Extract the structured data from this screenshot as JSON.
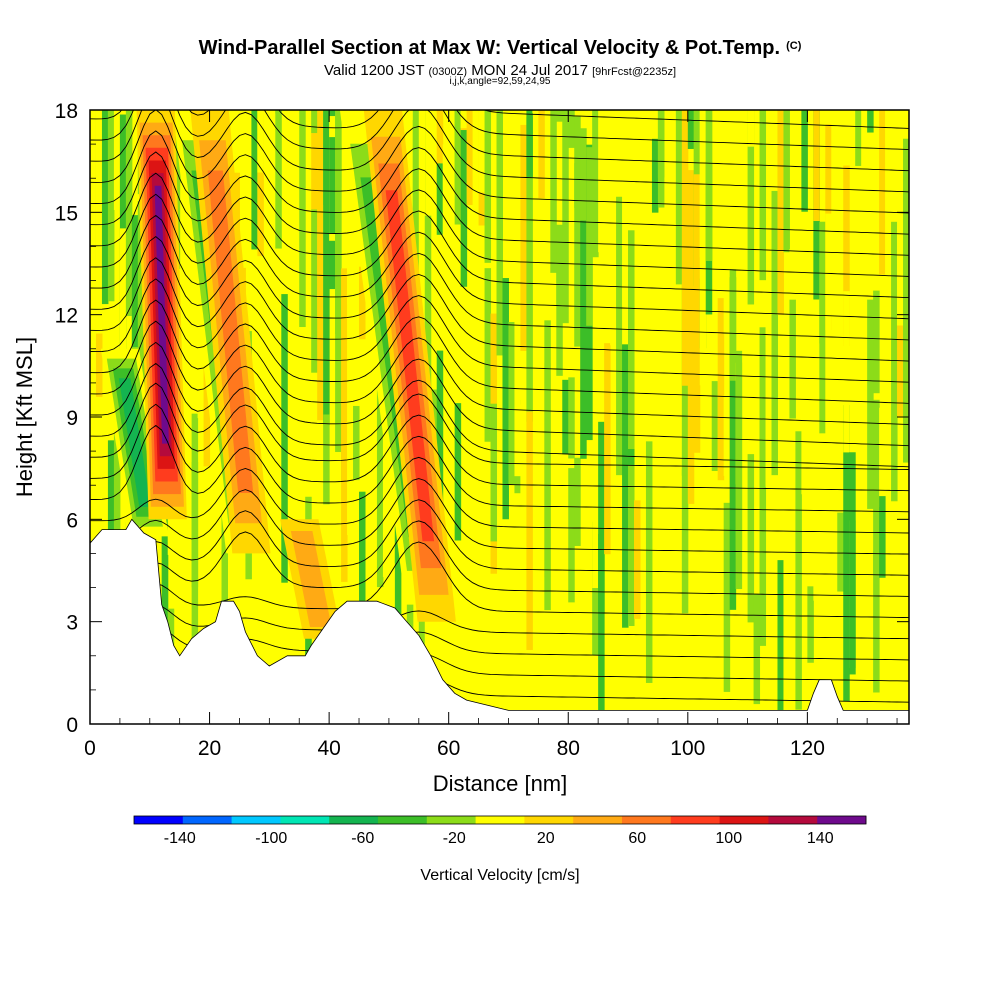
{
  "header": {
    "title": "Wind-Parallel Section at Max W: Vertical Velocity & Pot.Temp.",
    "copyright": "(C)",
    "valid_a": "Valid 1200 JST",
    "valid_z": "(0300Z)",
    "valid_b": "MON 24 Jul 2017",
    "forecast": "[9hrFcst@2235z]",
    "grid_info": "i,j,k,angle=92,59,24,95"
  },
  "chart_data": {
    "type": "heatmap",
    "title": "Wind-Parallel Section at Max W: Vertical Velocity & Pot.Temp.",
    "xlabel": "Distance [nm]",
    "ylabel": "Height [Kft MSL]",
    "xlim": [
      0,
      137
    ],
    "ylim": [
      0,
      18
    ],
    "x_ticks": [
      0,
      20,
      40,
      60,
      80,
      100,
      120
    ],
    "y_ticks": [
      0,
      3,
      6,
      9,
      12,
      15,
      18
    ],
    "colorbar": {
      "label": "Vertical Velocity [cm/s]",
      "min": -160,
      "max": 160,
      "step": 20,
      "tick_values": [
        -140,
        -100,
        -60,
        -20,
        20,
        60,
        100,
        140
      ],
      "colors": [
        "#0000ff",
        "#0066ff",
        "#00c8ff",
        "#00e6b4",
        "#14b450",
        "#3cbe28",
        "#8cdc19",
        "#ffff00",
        "#ffd700",
        "#ffaa14",
        "#ff781e",
        "#ff3c1e",
        "#dc1414",
        "#b40a3c",
        "#6e0a8c"
      ]
    },
    "updraft_bands": [
      {
        "x_bottom": 13,
        "x_top": 11,
        "y_bottom": 6,
        "y_top": 18,
        "peak_w": 140
      },
      {
        "x_bottom": 27,
        "x_top": 20,
        "y_bottom": 5,
        "y_top": 18,
        "peak_w": 60
      },
      {
        "x_bottom": 58,
        "x_top": 49,
        "y_bottom": 3,
        "y_top": 18,
        "peak_w": 80
      },
      {
        "x_bottom": 39,
        "x_top": 35,
        "y_bottom": 2.5,
        "y_top": 6,
        "peak_w": 40
      }
    ],
    "downdraft_bands": [
      {
        "x_bottom": 10,
        "x_top": 5,
        "y_bottom": 5.5,
        "y_top": 11,
        "peak_w": -80
      },
      {
        "x_bottom": 26,
        "x_top": 17,
        "y_bottom": 5,
        "y_top": 18,
        "peak_w": -60
      },
      {
        "x_bottom": 56,
        "x_top": 45,
        "y_bottom": 3.5,
        "y_top": 18,
        "peak_w": -60
      }
    ],
    "terrain_kft": [
      [
        0,
        5.3
      ],
      [
        2,
        5.7
      ],
      [
        4,
        5.7
      ],
      [
        6,
        5.7
      ],
      [
        7,
        6.0
      ],
      [
        9,
        5.6
      ],
      [
        11,
        5.4
      ],
      [
        12,
        3.5
      ],
      [
        13,
        3.0
      ],
      [
        14,
        2.3
      ],
      [
        15,
        2.0
      ],
      [
        17,
        2.5
      ],
      [
        19,
        2.8
      ],
      [
        21,
        3.0
      ],
      [
        22,
        3.6
      ],
      [
        24,
        3.6
      ],
      [
        25,
        3.3
      ],
      [
        26,
        2.7
      ],
      [
        28,
        2.0
      ],
      [
        30,
        1.7
      ],
      [
        33,
        2.0
      ],
      [
        36,
        2.0
      ],
      [
        37,
        2.3
      ],
      [
        39,
        2.8
      ],
      [
        41,
        3.3
      ],
      [
        43,
        3.6
      ],
      [
        48,
        3.6
      ],
      [
        51,
        3.4
      ],
      [
        53,
        3.0
      ],
      [
        55,
        2.6
      ],
      [
        57,
        2.0
      ],
      [
        59,
        1.3
      ],
      [
        61,
        0.9
      ],
      [
        63,
        0.7
      ],
      [
        70,
        0.4
      ],
      [
        80,
        0.4
      ],
      [
        110,
        0.4
      ],
      [
        120,
        0.4
      ],
      [
        121,
        0.9
      ],
      [
        122,
        1.3
      ],
      [
        124,
        1.3
      ],
      [
        125,
        0.8
      ],
      [
        126,
        0.4
      ],
      [
        137,
        0.4
      ]
    ]
  }
}
